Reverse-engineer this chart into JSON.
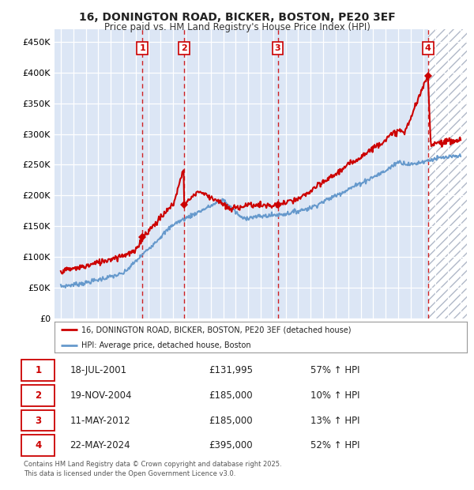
{
  "title": "16, DONINGTON ROAD, BICKER, BOSTON, PE20 3EF",
  "subtitle": "Price paid vs. HM Land Registry's House Price Index (HPI)",
  "ylim": [
    0,
    470000
  ],
  "yticks": [
    0,
    50000,
    100000,
    150000,
    200000,
    250000,
    300000,
    350000,
    400000,
    450000
  ],
  "ytick_labels": [
    "£0",
    "£50K",
    "£100K",
    "£150K",
    "£200K",
    "£250K",
    "£300K",
    "£350K",
    "£400K",
    "£450K"
  ],
  "xlim_start": 1994.5,
  "xlim_end": 2027.5,
  "x_year_start": 1995,
  "x_year_end": 2027,
  "background_color": "#ffffff",
  "plot_bg_color": "#dce6f5",
  "grid_color": "#ffffff",
  "hpi_line_color": "#6699cc",
  "price_line_color": "#cc0000",
  "sale_marker_color": "#cc0000",
  "vline_color": "#cc0000",
  "shade_color": "#dce6f5",
  "hatch_bg_color": "#ffffff",
  "transactions": [
    {
      "num": 1,
      "date": "18-JUL-2001",
      "year": 2001.54,
      "price": 131995,
      "label": "57% ↑ HPI"
    },
    {
      "num": 2,
      "date": "19-NOV-2004",
      "year": 2004.88,
      "price": 185000,
      "label": "10% ↑ HPI"
    },
    {
      "num": 3,
      "date": "11-MAY-2012",
      "year": 2012.36,
      "price": 185000,
      "label": "13% ↑ HPI"
    },
    {
      "num": 4,
      "date": "22-MAY-2024",
      "year": 2024.38,
      "price": 395000,
      "label": "52% ↑ HPI"
    }
  ],
  "legend_property_label": "16, DONINGTON ROAD, BICKER, BOSTON, PE20 3EF (detached house)",
  "legend_hpi_label": "HPI: Average price, detached house, Boston",
  "footer": "Contains HM Land Registry data © Crown copyright and database right 2025.\nThis data is licensed under the Open Government Licence v3.0.",
  "table_rows": [
    {
      "num": 1,
      "date": "18-JUL-2001",
      "price": "£131,995",
      "hpi": "57% ↑ HPI"
    },
    {
      "num": 2,
      "date": "19-NOV-2004",
      "price": "£185,000",
      "hpi": "10% ↑ HPI"
    },
    {
      "num": 3,
      "date": "11-MAY-2012",
      "price": "£185,000",
      "hpi": "13% ↑ HPI"
    },
    {
      "num": 4,
      "date": "22-MAY-2024",
      "price": "£395,000",
      "hpi": "52% ↑ HPI"
    }
  ]
}
